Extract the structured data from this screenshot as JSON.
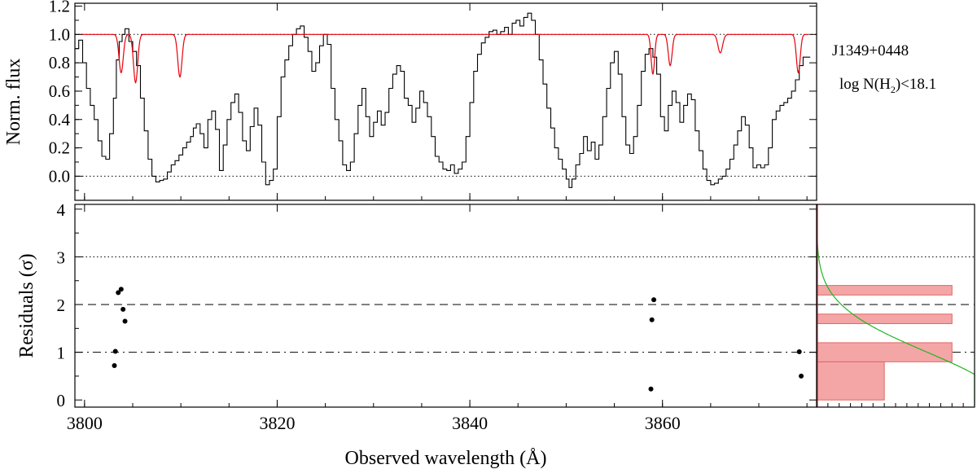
{
  "chart_data": [
    {
      "type": "line",
      "panel": "top",
      "ylabel": "Norm. flux",
      "xlim": [
        3799,
        3876
      ],
      "ylim": [
        -0.17,
        1.22
      ],
      "yticks": [
        "0.0",
        "0.2",
        "0.4",
        "0.6",
        "0.8",
        "1.0",
        "1.2"
      ],
      "reference_lines": [
        {
          "y": 1.0,
          "style": "dotted"
        },
        {
          "y": 0.0,
          "style": "dotted"
        }
      ],
      "annotations": [
        "J1349+0448"
      ],
      "series": [
        {
          "color": "#000000",
          "step": true,
          "points": [
            [
              3799.0,
              0.9
            ],
            [
              3799.4,
              0.96
            ],
            [
              3799.8,
              0.8
            ],
            [
              3800.2,
              0.62
            ],
            [
              3800.6,
              0.5
            ],
            [
              3801.0,
              0.4
            ],
            [
              3801.4,
              0.25
            ],
            [
              3801.8,
              0.14
            ],
            [
              3802.2,
              0.12
            ],
            [
              3802.6,
              0.3
            ],
            [
              3803.0,
              0.55
            ],
            [
              3803.3,
              0.82
            ],
            [
              3803.6,
              0.95
            ],
            [
              3803.9,
              1.0
            ],
            [
              3804.2,
              1.04
            ],
            [
              3804.6,
              0.95
            ],
            [
              3805.0,
              0.88
            ],
            [
              3805.4,
              0.78
            ],
            [
              3805.8,
              0.55
            ],
            [
              3806.2,
              0.32
            ],
            [
              3806.6,
              0.12
            ],
            [
              3807.0,
              0.0
            ],
            [
              3807.4,
              -0.04
            ],
            [
              3807.8,
              -0.03
            ],
            [
              3808.2,
              -0.02
            ],
            [
              3808.6,
              0.03
            ],
            [
              3809.0,
              0.08
            ],
            [
              3809.4,
              0.11
            ],
            [
              3809.8,
              0.15
            ],
            [
              3810.2,
              0.2
            ],
            [
              3810.6,
              0.24
            ],
            [
              3811.0,
              0.28
            ],
            [
              3811.3,
              0.34
            ],
            [
              3811.6,
              0.37
            ],
            [
              3812.0,
              0.3
            ],
            [
              3812.4,
              0.2
            ],
            [
              3812.8,
              0.4
            ],
            [
              3813.2,
              0.46
            ],
            [
              3813.6,
              0.33
            ],
            [
              3814.0,
              0.04
            ],
            [
              3814.4,
              0.22
            ],
            [
              3814.8,
              0.4
            ],
            [
              3815.2,
              0.52
            ],
            [
              3815.6,
              0.58
            ],
            [
              3816.0,
              0.45
            ],
            [
              3816.4,
              0.25
            ],
            [
              3816.8,
              0.18
            ],
            [
              3817.2,
              0.35
            ],
            [
              3817.6,
              0.48
            ],
            [
              3818.0,
              0.36
            ],
            [
              3818.4,
              0.1
            ],
            [
              3818.8,
              -0.06
            ],
            [
              3819.2,
              -0.03
            ],
            [
              3819.6,
              0.05
            ],
            [
              3820.0,
              0.42
            ],
            [
              3820.4,
              0.7
            ],
            [
              3820.8,
              0.82
            ],
            [
              3821.2,
              0.92
            ],
            [
              3821.6,
              1.0
            ],
            [
              3822.0,
              1.04
            ],
            [
              3822.4,
              1.06
            ],
            [
              3822.8,
              0.98
            ],
            [
              3823.2,
              0.88
            ],
            [
              3823.6,
              0.74
            ],
            [
              3824.0,
              0.8
            ],
            [
              3824.4,
              0.92
            ],
            [
              3824.8,
              1.0
            ],
            [
              3825.2,
              0.93
            ],
            [
              3825.6,
              0.62
            ],
            [
              3826.0,
              0.4
            ],
            [
              3826.4,
              0.25
            ],
            [
              3826.8,
              0.08
            ],
            [
              3827.2,
              0.04
            ],
            [
              3827.6,
              0.1
            ],
            [
              3828.0,
              0.3
            ],
            [
              3828.4,
              0.5
            ],
            [
              3828.8,
              0.62
            ],
            [
              3829.2,
              0.42
            ],
            [
              3829.6,
              0.28
            ],
            [
              3830.0,
              0.38
            ],
            [
              3830.4,
              0.46
            ],
            [
              3830.8,
              0.36
            ],
            [
              3831.2,
              0.45
            ],
            [
              3831.6,
              0.62
            ],
            [
              3832.0,
              0.72
            ],
            [
              3832.4,
              0.78
            ],
            [
              3832.8,
              0.74
            ],
            [
              3833.2,
              0.55
            ],
            [
              3833.6,
              0.5
            ],
            [
              3834.0,
              0.38
            ],
            [
              3834.4,
              0.48
            ],
            [
              3834.8,
              0.6
            ],
            [
              3835.2,
              0.52
            ],
            [
              3835.6,
              0.42
            ],
            [
              3836.0,
              0.28
            ],
            [
              3836.4,
              0.14
            ],
            [
              3836.8,
              0.1
            ],
            [
              3837.2,
              0.05
            ],
            [
              3837.6,
              0.04
            ],
            [
              3838.0,
              0.08
            ],
            [
              3838.4,
              0.02
            ],
            [
              3838.8,
              0.05
            ],
            [
              3839.2,
              0.1
            ],
            [
              3839.6,
              0.28
            ],
            [
              3840.0,
              0.52
            ],
            [
              3840.4,
              0.74
            ],
            [
              3840.8,
              0.86
            ],
            [
              3841.2,
              0.94
            ],
            [
              3841.6,
              0.98
            ],
            [
              3842.0,
              1.02
            ],
            [
              3842.4,
              1.03
            ],
            [
              3842.8,
              1.0
            ],
            [
              3843.2,
              1.02
            ],
            [
              3843.6,
              1.05
            ],
            [
              3844.0,
              1.0
            ],
            [
              3844.4,
              1.08
            ],
            [
              3844.8,
              1.1
            ],
            [
              3845.2,
              1.06
            ],
            [
              3845.6,
              1.12
            ],
            [
              3846.0,
              1.15
            ],
            [
              3846.4,
              1.1
            ],
            [
              3846.8,
              1.0
            ],
            [
              3847.2,
              0.82
            ],
            [
              3847.6,
              0.65
            ],
            [
              3848.0,
              0.48
            ],
            [
              3848.4,
              0.34
            ],
            [
              3848.8,
              0.2
            ],
            [
              3849.2,
              0.12
            ],
            [
              3849.6,
              0.05
            ],
            [
              3850.0,
              -0.02
            ],
            [
              3850.3,
              -0.08
            ],
            [
              3850.6,
              -0.02
            ],
            [
              3851.0,
              0.08
            ],
            [
              3851.4,
              0.16
            ],
            [
              3851.8,
              0.28
            ],
            [
              3852.2,
              0.18
            ],
            [
              3852.6,
              0.24
            ],
            [
              3853.0,
              0.12
            ],
            [
              3853.4,
              0.22
            ],
            [
              3853.8,
              0.42
            ],
            [
              3854.2,
              0.62
            ],
            [
              3854.6,
              0.8
            ],
            [
              3855.0,
              0.88
            ],
            [
              3855.4,
              0.72
            ],
            [
              3855.8,
              0.42
            ],
            [
              3856.2,
              0.22
            ],
            [
              3856.6,
              0.16
            ],
            [
              3857.0,
              0.28
            ],
            [
              3857.4,
              0.5
            ],
            [
              3857.8,
              0.74
            ],
            [
              3858.2,
              0.86
            ],
            [
              3858.6,
              0.9
            ],
            [
              3859.0,
              0.84
            ],
            [
              3859.4,
              0.72
            ],
            [
              3859.8,
              0.42
            ],
            [
              3860.2,
              0.32
            ],
            [
              3860.6,
              0.5
            ],
            [
              3861.0,
              0.6
            ],
            [
              3861.4,
              0.52
            ],
            [
              3861.8,
              0.38
            ],
            [
              3862.2,
              0.5
            ],
            [
              3862.6,
              0.58
            ],
            [
              3863.0,
              0.54
            ],
            [
              3863.4,
              0.32
            ],
            [
              3863.8,
              0.18
            ],
            [
              3864.2,
              0.05
            ],
            [
              3864.6,
              -0.03
            ],
            [
              3865.0,
              -0.06
            ],
            [
              3865.4,
              -0.05
            ],
            [
              3865.8,
              -0.02
            ],
            [
              3866.2,
              0.0
            ],
            [
              3866.6,
              0.05
            ],
            [
              3867.0,
              0.12
            ],
            [
              3867.4,
              0.22
            ],
            [
              3867.8,
              0.32
            ],
            [
              3868.2,
              0.42
            ],
            [
              3868.6,
              0.36
            ],
            [
              3869.0,
              0.2
            ],
            [
              3869.4,
              0.06
            ],
            [
              3869.8,
              0.08
            ],
            [
              3870.2,
              0.06
            ],
            [
              3870.6,
              0.08
            ],
            [
              3871.0,
              0.2
            ],
            [
              3871.4,
              0.4
            ],
            [
              3871.8,
              0.46
            ],
            [
              3872.2,
              0.5
            ],
            [
              3872.6,
              0.52
            ],
            [
              3873.0,
              0.55
            ],
            [
              3873.4,
              0.6
            ],
            [
              3873.8,
              0.68
            ],
            [
              3874.2,
              0.78
            ],
            [
              3874.6,
              0.84
            ],
            [
              3875.0,
              0.84
            ]
          ]
        },
        {
          "color": "#e8000b",
          "step": false,
          "model": {
            "baseline": 1.0,
            "lines": [
              {
                "center": 3803.8,
                "depth": 0.27,
                "sigma": 0.22
              },
              {
                "center": 3805.3,
                "depth": 0.34,
                "sigma": 0.22
              },
              {
                "center": 3809.9,
                "depth": 0.3,
                "sigma": 0.22
              },
              {
                "center": 3859.0,
                "depth": 0.28,
                "sigma": 0.18
              },
              {
                "center": 3860.8,
                "depth": 0.22,
                "sigma": 0.2
              },
              {
                "center": 3866.0,
                "depth": 0.13,
                "sigma": 0.24
              },
              {
                "center": 3874.1,
                "depth": 0.27,
                "sigma": 0.2
              }
            ]
          }
        }
      ]
    },
    {
      "type": "scatter",
      "panel": "bottom",
      "xlabel": "Observed wavelength (Å)",
      "ylabel": "Residuals (σ)",
      "xlim": [
        3799,
        3876
      ],
      "ylim": [
        -0.15,
        4.1
      ],
      "xticks": [
        3800,
        3820,
        3840,
        3860
      ],
      "yticks": [
        "0",
        "1",
        "2",
        "3",
        "4"
      ],
      "reference_lines": [
        {
          "y": 3,
          "style": "dotted"
        },
        {
          "y": 2,
          "style": "dashed"
        },
        {
          "y": 1,
          "style": "dashdot"
        }
      ],
      "points": [
        [
          3803.1,
          0.72
        ],
        [
          3803.2,
          1.02
        ],
        [
          3803.5,
          2.25
        ],
        [
          3803.8,
          2.32
        ],
        [
          3804.0,
          1.9
        ],
        [
          3804.2,
          1.65
        ],
        [
          3858.8,
          0.23
        ],
        [
          3858.9,
          1.68
        ],
        [
          3859.1,
          2.1
        ],
        [
          3874.2,
          1.01
        ],
        [
          3874.4,
          0.5
        ]
      ],
      "side_histogram": {
        "fill": "#f4a6a6",
        "edge": "#e06666",
        "gaussian_color": "#22b422",
        "bins": [
          {
            "range": [
              0.0,
              0.8
            ],
            "count": 3
          },
          {
            "range": [
              0.8,
              1.2
            ],
            "count": 6
          },
          {
            "range": [
              1.6,
              1.8
            ],
            "count": 6
          },
          {
            "range": [
              2.2,
              2.4
            ],
            "count": 6
          }
        ]
      }
    }
  ],
  "labels": {
    "object": "J1349+0448",
    "nh2_prefix": "log N(H",
    "nh2_sub": "2",
    "nh2_suffix": ")<18.1"
  }
}
